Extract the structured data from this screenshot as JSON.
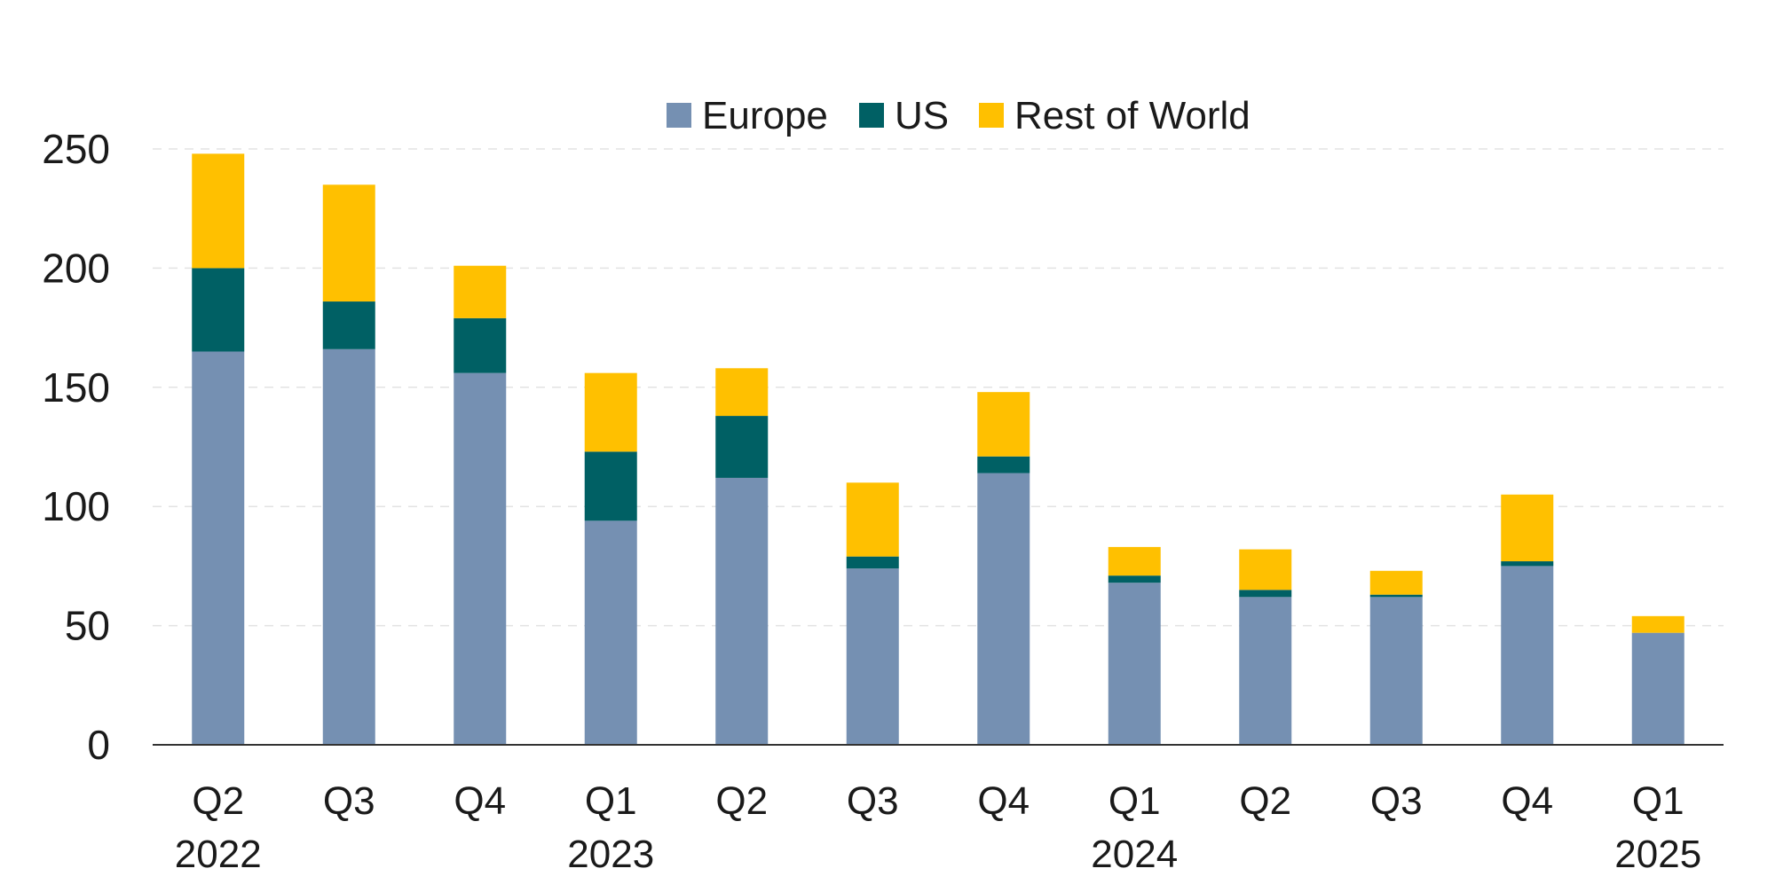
{
  "chart_data": {
    "type": "bar",
    "stacked": true,
    "title": "",
    "xlabel": "",
    "ylabel": "",
    "ylim": [
      0,
      250
    ],
    "yticks": [
      0,
      50,
      100,
      150,
      200,
      250
    ],
    "grid": true,
    "legend_position": "top-center",
    "categories": [
      {
        "quarter": "Q2",
        "year": "2022"
      },
      {
        "quarter": "Q3",
        "year": ""
      },
      {
        "quarter": "Q4",
        "year": ""
      },
      {
        "quarter": "Q1",
        "year": "2023"
      },
      {
        "quarter": "Q2",
        "year": ""
      },
      {
        "quarter": "Q3",
        "year": ""
      },
      {
        "quarter": "Q4",
        "year": ""
      },
      {
        "quarter": "Q1",
        "year": "2024"
      },
      {
        "quarter": "Q2",
        "year": ""
      },
      {
        "quarter": "Q3",
        "year": ""
      },
      {
        "quarter": "Q4",
        "year": ""
      },
      {
        "quarter": "Q1",
        "year": "2025"
      }
    ],
    "series": [
      {
        "name": "Europe",
        "color": "#7590B2",
        "values": [
          165,
          166,
          156,
          94,
          112,
          74,
          114,
          68,
          62,
          62,
          75,
          47
        ]
      },
      {
        "name": "US",
        "color": "#006064",
        "values": [
          35,
          20,
          23,
          29,
          26,
          5,
          7,
          3,
          3,
          1,
          2,
          0
        ]
      },
      {
        "name": "Rest of World",
        "color": "#FFC000",
        "values": [
          48,
          49,
          22,
          33,
          20,
          31,
          27,
          12,
          17,
          10,
          28,
          7
        ]
      }
    ]
  }
}
